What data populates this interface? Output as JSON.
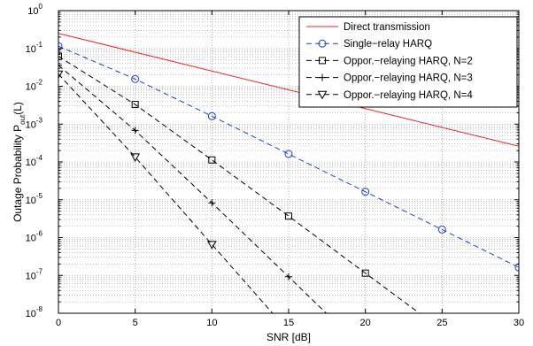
{
  "chart_data": {
    "type": "line",
    "xlabel": "SNR [dB]",
    "ylabel_main": "Outage Probability P",
    "ylabel_sub": "out",
    "ylabel_tail": "(L)",
    "xlim": [
      0,
      30
    ],
    "ylim_exponent": [
      -8,
      0
    ],
    "yscale": "log",
    "xticks": [
      "0",
      "5",
      "10",
      "15",
      "20",
      "25",
      "30"
    ],
    "yticks": [
      {
        "base": "10",
        "exp": "0"
      },
      {
        "base": "10",
        "exp": "-1"
      },
      {
        "base": "10",
        "exp": "-2"
      },
      {
        "base": "10",
        "exp": "-3"
      },
      {
        "base": "10",
        "exp": "-4"
      },
      {
        "base": "10",
        "exp": "-5"
      },
      {
        "base": "10",
        "exp": "-6"
      },
      {
        "base": "10",
        "exp": "-7"
      },
      {
        "base": "10",
        "exp": "-8"
      }
    ],
    "grid": true,
    "legend_position": "top-right",
    "series": [
      {
        "name": "Direct transmission",
        "color": "#e8262a",
        "dash": "solid",
        "marker": "none",
        "x": [
          0,
          30
        ],
        "y": [
          0.25,
          0.00026
        ]
      },
      {
        "name": "Single−relay HARQ",
        "color": "#1f3fd6",
        "dash": "dashed",
        "marker": "circle",
        "x": [
          0,
          5,
          10,
          15,
          20,
          25,
          30
        ],
        "y": [
          0.115,
          0.0155,
          0.00162,
          0.000162,
          1.63e-05,
          1.63e-06,
          1.63e-07
        ]
      },
      {
        "name": "Oppor.−relaying HARQ, N=2",
        "color": "#000000",
        "dash": "dashed",
        "marker": "square",
        "x": [
          0,
          5,
          10,
          15,
          20,
          25
        ],
        "y": [
          0.062,
          0.0033,
          0.000113,
          3.7e-06,
          1.15e-07,
          3.6e-09
        ]
      },
      {
        "name": "Oppor.−relaying HARQ, N=3",
        "color": "#000000",
        "dash": "dashed",
        "marker": "plus",
        "x": [
          0,
          5,
          10,
          15,
          20
        ],
        "y": [
          0.036,
          0.00068,
          8.3e-06,
          9.2e-08,
          1e-09
        ]
      },
      {
        "name": "Oppor.−relaying HARQ, N=4",
        "color": "#000000",
        "dash": "dashed",
        "marker": "triangle",
        "x": [
          0,
          5,
          10,
          15
        ],
        "y": [
          0.021,
          0.000135,
          6.6e-07,
          3.3e-09
        ]
      }
    ]
  }
}
